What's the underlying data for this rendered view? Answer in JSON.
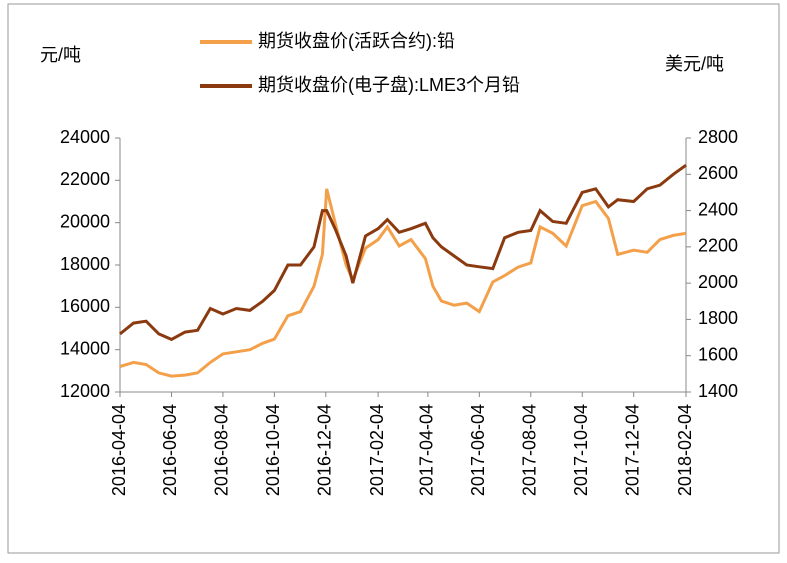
{
  "chart_data": {
    "type": "line",
    "y_label": "元/吨",
    "y2_label": "美元/吨",
    "x": [
      "2016-04-04",
      "2016-04-20",
      "2016-05-05",
      "2016-05-20",
      "2016-06-04",
      "2016-06-20",
      "2016-07-05",
      "2016-07-20",
      "2016-08-04",
      "2016-08-20",
      "2016-09-05",
      "2016-09-20",
      "2016-10-04",
      "2016-10-20",
      "2016-11-04",
      "2016-11-20",
      "2016-11-30",
      "2016-12-05",
      "2016-12-15",
      "2016-12-28",
      "2017-01-05",
      "2017-01-20",
      "2017-02-04",
      "2017-02-15",
      "2017-03-01",
      "2017-03-15",
      "2017-04-01",
      "2017-04-10",
      "2017-04-20",
      "2017-05-05",
      "2017-05-20",
      "2017-06-04",
      "2017-06-20",
      "2017-07-04",
      "2017-07-20",
      "2017-08-04",
      "2017-08-15",
      "2017-08-30",
      "2017-09-15",
      "2017-10-04",
      "2017-10-20",
      "2017-11-04",
      "2017-11-15",
      "2017-12-04",
      "2017-12-20",
      "2018-01-04",
      "2018-01-20",
      "2018-02-04"
    ],
    "series": [
      {
        "name": "期货收盘价(活跃合约):铅",
        "color": "#f4a04a",
        "values": [
          13200,
          13400,
          13300,
          12900,
          12750,
          12800,
          12900,
          13400,
          13800,
          13900,
          14000,
          14300,
          14500,
          15600,
          15800,
          17000,
          18500,
          21600,
          20000,
          18000,
          17300,
          18800,
          19200,
          19800,
          18900,
          19200,
          18300,
          17000,
          16300,
          16100,
          16200,
          15800,
          17200,
          17500,
          17900,
          18100,
          19800,
          19500,
          18900,
          20800,
          21000,
          20200,
          18500,
          18700,
          18600,
          19200,
          19400,
          19500
        ]
      },
      {
        "name": "期货收盘价(电子盘):LME3个月铅",
        "color": "#8b3a0f",
        "axis": "y2",
        "values": [
          1720,
          1780,
          1790,
          1720,
          1690,
          1730,
          1740,
          1860,
          1830,
          1860,
          1850,
          1900,
          1960,
          2100,
          2100,
          2200,
          2400,
          2400,
          2300,
          2150,
          2000,
          2260,
          2300,
          2350,
          2280,
          2300,
          2330,
          2250,
          2200,
          2150,
          2100,
          2090,
          2080,
          2250,
          2280,
          2290,
          2400,
          2340,
          2330,
          2500,
          2520,
          2420,
          2460,
          2450,
          2520,
          2540,
          2600,
          2650
        ]
      }
    ],
    "xlim": [
      "2016-04-04",
      "2018-02-04"
    ],
    "xticks": [
      "2016-04-04",
      "2016-06-04",
      "2016-08-04",
      "2016-10-04",
      "2016-12-04",
      "2017-02-04",
      "2017-04-04",
      "2017-06-04",
      "2017-08-04",
      "2017-10-04",
      "2017-12-04",
      "2018-02-04"
    ],
    "ylim": [
      12000,
      24000
    ],
    "yticks": [
      12000,
      14000,
      16000,
      18000,
      20000,
      22000,
      24000
    ],
    "y2lim": [
      1400,
      2800
    ],
    "y2ticks": [
      1400,
      1600,
      1800,
      2000,
      2200,
      2400,
      2600,
      2800
    ]
  }
}
